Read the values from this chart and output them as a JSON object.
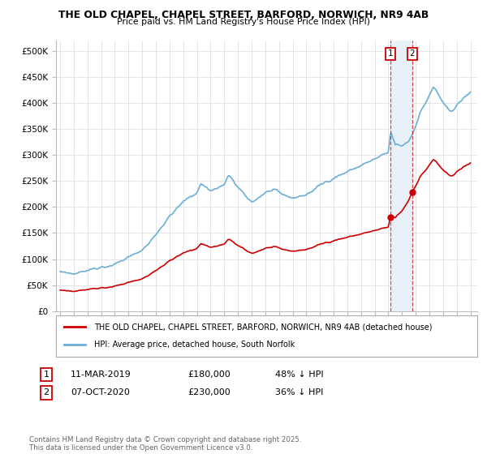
{
  "title1": "THE OLD CHAPEL, CHAPEL STREET, BARFORD, NORWICH, NR9 4AB",
  "title2": "Price paid vs. HM Land Registry's House Price Index (HPI)",
  "yticks": [
    0,
    50000,
    100000,
    150000,
    200000,
    250000,
    300000,
    350000,
    400000,
    450000,
    500000
  ],
  "ytick_labels": [
    "£0",
    "£50K",
    "£100K",
    "£150K",
    "£200K",
    "£250K",
    "£300K",
    "£350K",
    "£400K",
    "£450K",
    "£500K"
  ],
  "ylim": [
    0,
    520000
  ],
  "hpi_color": "#6baed6",
  "price_color": "#cc0000",
  "sale1_year": 2019.17,
  "sale2_year": 2020.75,
  "sale1_price": 180000,
  "sale2_price": 230000,
  "sale1_date": "11-MAR-2019",
  "sale2_date": "07-OCT-2020",
  "sale1_label": "48% ↓ HPI",
  "sale2_label": "36% ↓ HPI",
  "legend_label1": "THE OLD CHAPEL, CHAPEL STREET, BARFORD, NORWICH, NR9 4AB (detached house)",
  "legend_label2": "HPI: Average price, detached house, South Norfolk",
  "footnote": "Contains HM Land Registry data © Crown copyright and database right 2025.\nThis data is licensed under the Open Government Licence v3.0.",
  "background_color": "#ffffff",
  "grid_color": "#e0e0e0",
  "shade_color": "#e8f0f8",
  "xlim_left": 1994.7,
  "xlim_right": 2025.5
}
